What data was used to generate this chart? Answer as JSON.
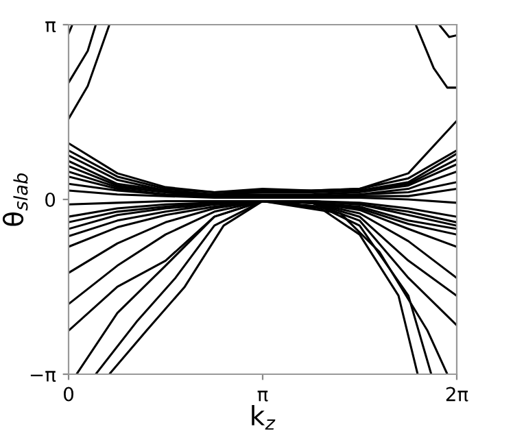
{
  "chart_data": {
    "type": "line",
    "xlabel": "k$_{z}$",
    "ylabel": "θ$_{slab}$",
    "x": [
      0,
      0.79,
      1.57,
      2.36,
      3.14,
      3.93,
      4.71,
      5.5,
      6.28
    ],
    "xlim": [
      0,
      6.2832
    ],
    "ylim": [
      -3.1416,
      3.1416
    ],
    "xticks": [
      0,
      {
        "value": 3.1416,
        "label": "π"
      },
      {
        "value": 6.2832,
        "label": "2π"
      }
    ],
    "yticks": [
      {
        "value": -3.1416,
        "label": "−π"
      },
      0,
      {
        "value": 3.1416,
        "label": "π"
      }
    ],
    "grid": false,
    "legend": false,
    "marker": "none",
    "line_style": "solid",
    "series": [
      {
        "color": "#000000",
        "values": [
          1.01,
          0.47,
          0.22,
          0.13,
          0.16,
          0.16,
          0.19,
          0.47,
          1.41
        ]
      },
      {
        "color": "#000000",
        "values": [
          0.88,
          0.41,
          0.19,
          0.13,
          0.19,
          0.16,
          0.19,
          0.38,
          0.88
        ]
      },
      {
        "color": "#000000",
        "values": [
          0.79,
          0.35,
          0.16,
          0.09,
          0.16,
          0.13,
          0.16,
          0.31,
          0.82
        ]
      },
      {
        "color": "#000000",
        "values": [
          0.69,
          0.28,
          0.16,
          0.09,
          0.13,
          0.13,
          0.16,
          0.28,
          0.72
        ]
      },
      {
        "color": "#000000",
        "values": [
          0.6,
          0.25,
          0.13,
          0.09,
          0.09,
          0.09,
          0.13,
          0.25,
          0.63
        ]
      },
      {
        "color": "#000000",
        "values": [
          0.5,
          0.22,
          0.13,
          0.06,
          0.06,
          0.06,
          0.09,
          0.19,
          0.5
        ]
      },
      {
        "color": "#000000",
        "values": [
          0.41,
          0.19,
          0.09,
          0.06,
          0.06,
          0.06,
          0.09,
          0.13,
          0.31
        ]
      },
      {
        "color": "#000000",
        "values": [
          0.28,
          0.16,
          0.09,
          0.06,
          0.03,
          0.06,
          0.06,
          0.06,
          0.19
        ]
      },
      {
        "color": "#000000",
        "values": [
          0.16,
          0.09,
          0.06,
          0.03,
          0.03,
          0.03,
          0.03,
          0.0,
          -0.06
        ]
      },
      {
        "color": "#000000",
        "values": [
          -0.09,
          -0.06,
          -0.03,
          -0.03,
          -0.03,
          -0.03,
          -0.06,
          -0.16,
          -0.31
        ]
      },
      {
        "color": "#000000",
        "values": [
          -0.31,
          -0.16,
          -0.09,
          -0.06,
          -0.03,
          -0.03,
          -0.09,
          -0.22,
          -0.41
        ]
      },
      {
        "color": "#000000",
        "values": [
          -0.41,
          -0.22,
          -0.13,
          -0.06,
          -0.03,
          -0.03,
          -0.09,
          -0.28,
          -0.47
        ]
      },
      {
        "color": "#000000",
        "values": [
          -0.53,
          -0.28,
          -0.16,
          -0.09,
          -0.03,
          -0.06,
          -0.13,
          -0.38,
          -0.53
        ]
      },
      {
        "color": "#000000",
        "values": [
          -0.66,
          -0.38,
          -0.22,
          -0.09,
          -0.03,
          -0.06,
          -0.16,
          -0.44,
          -0.63
        ]
      },
      {
        "color": "#000000",
        "values": [
          -0.85,
          -0.5,
          -0.28,
          -0.13,
          -0.03,
          -0.06,
          -0.19,
          -0.53,
          -0.85
        ]
      },
      {
        "color": "#000000",
        "values": [
          -1.32,
          -0.79,
          -0.41,
          -0.16,
          -0.03,
          -0.06,
          -0.25,
          -0.75,
          -1.41
        ]
      },
      {
        "color": "#000000",
        "values": [
          -1.88,
          -1.19,
          -0.63,
          -0.22,
          -0.03,
          -0.06,
          -0.31,
          -1.1,
          -1.73
        ]
      },
      {
        "color": "#000000",
        "values": [
          -2.36,
          -1.57,
          -1.1,
          -0.31,
          -0.03,
          -0.06,
          -0.38,
          -1.41,
          -2.26
        ]
      },
      {
        "color": "#000000",
        "x": [
          0.13,
          0.79,
          1.57,
          2.36,
          3.14,
          4.08,
          4.71,
          5.34,
          5.65
        ],
        "values": [
          -3.14,
          -2.04,
          -1.19,
          -0.31,
          -0.03,
          -0.16,
          -0.63,
          -1.73,
          -3.14
        ]
      },
      {
        "color": "#000000",
        "x": [
          0.44,
          1.1,
          1.73,
          2.36,
          3.14,
          4.08,
          4.71,
          5.5,
          5.87
        ],
        "values": [
          -3.14,
          -2.2,
          -1.41,
          -0.47,
          -0.03,
          -0.13,
          -0.47,
          -1.73,
          -3.14
        ]
      },
      {
        "color": "#000000",
        "x": [
          0.66,
          1.26,
          1.88,
          2.51,
          3.14,
          4.4,
          5.03,
          5.81,
          6.13
        ],
        "values": [
          -3.14,
          -2.36,
          -1.57,
          -0.47,
          -0.03,
          -0.25,
          -0.94,
          -2.36,
          -3.14
        ]
      },
      {
        "color": "#000000",
        "x": [
          0,
          0.06
        ],
        "values": [
          2.98,
          3.14
        ]
      },
      {
        "color": "#000000",
        "x": [
          0,
          0.31,
          0.44
        ],
        "values": [
          2.1,
          2.67,
          3.14
        ]
      },
      {
        "color": "#000000",
        "x": [
          0,
          0.31,
          0.66
        ],
        "values": [
          1.45,
          2.04,
          3.14
        ]
      },
      {
        "color": "#000000",
        "x": [
          5.62,
          5.91,
          6.13,
          6.28
        ],
        "values": [
          3.14,
          2.36,
          2.01,
          2.01
        ]
      },
      {
        "color": "#000000",
        "x": [
          6.0,
          6.16,
          6.28
        ],
        "values": [
          3.14,
          2.92,
          2.95
        ]
      }
    ]
  }
}
